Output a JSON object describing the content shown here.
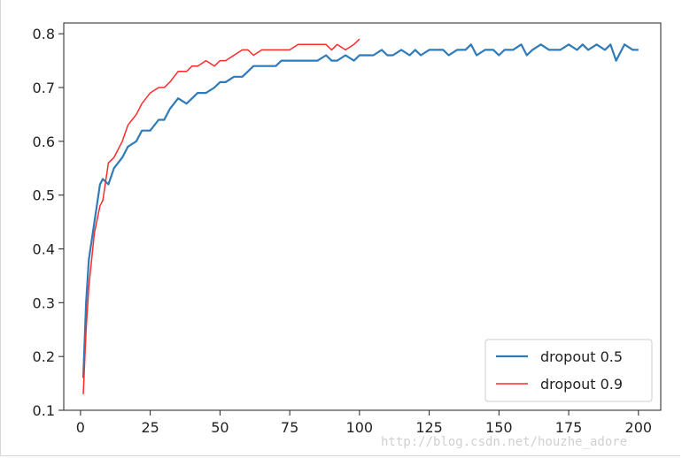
{
  "chart_data": {
    "type": "line",
    "title": "",
    "xlabel": "",
    "ylabel": "",
    "xlim": [
      -6,
      208
    ],
    "ylim": [
      0.1,
      0.82
    ],
    "xticks": [
      0,
      25,
      50,
      75,
      100,
      125,
      150,
      175,
      200
    ],
    "yticks": [
      0.1,
      0.2,
      0.3,
      0.4,
      0.5,
      0.6,
      0.7,
      0.8
    ],
    "xtick_labels": [
      "0",
      "25",
      "50",
      "75",
      "100",
      "125",
      "150",
      "175",
      "200"
    ],
    "ytick_labels": [
      "0.1",
      "0.2",
      "0.3",
      "0.4",
      "0.5",
      "0.6",
      "0.7",
      "0.8"
    ],
    "grid": false,
    "legend_position": "lower-right",
    "series": [
      {
        "name": "dropout 0.5",
        "color": "#2f7ab9",
        "x": [
          1,
          2,
          3,
          5,
          7,
          8,
          10,
          12,
          15,
          17,
          20,
          22,
          25,
          28,
          30,
          32,
          35,
          38,
          40,
          42,
          45,
          48,
          50,
          52,
          55,
          58,
          60,
          62,
          65,
          68,
          70,
          72,
          75,
          78,
          80,
          82,
          85,
          88,
          90,
          92,
          95,
          98,
          100,
          103,
          105,
          108,
          110,
          112,
          115,
          118,
          120,
          122,
          125,
          128,
          130,
          132,
          135,
          138,
          140,
          142,
          145,
          148,
          150,
          152,
          155,
          158,
          160,
          162,
          165,
          168,
          170,
          172,
          175,
          178,
          180,
          182,
          185,
          188,
          190,
          192,
          195,
          198,
          200
        ],
        "y": [
          0.16,
          0.3,
          0.38,
          0.45,
          0.52,
          0.53,
          0.52,
          0.55,
          0.57,
          0.59,
          0.6,
          0.62,
          0.62,
          0.64,
          0.64,
          0.66,
          0.68,
          0.67,
          0.68,
          0.69,
          0.69,
          0.7,
          0.71,
          0.71,
          0.72,
          0.72,
          0.73,
          0.74,
          0.74,
          0.74,
          0.74,
          0.75,
          0.75,
          0.75,
          0.75,
          0.75,
          0.75,
          0.76,
          0.75,
          0.75,
          0.76,
          0.75,
          0.76,
          0.76,
          0.76,
          0.77,
          0.76,
          0.76,
          0.77,
          0.76,
          0.77,
          0.76,
          0.77,
          0.77,
          0.77,
          0.76,
          0.77,
          0.77,
          0.78,
          0.76,
          0.77,
          0.77,
          0.76,
          0.77,
          0.77,
          0.78,
          0.76,
          0.77,
          0.78,
          0.77,
          0.77,
          0.77,
          0.78,
          0.77,
          0.78,
          0.77,
          0.78,
          0.77,
          0.78,
          0.75,
          0.78,
          0.77,
          0.77
        ]
      },
      {
        "name": "dropout 0.9",
        "color": "#ff2a2a",
        "x": [
          1,
          2,
          3,
          5,
          7,
          8,
          10,
          12,
          15,
          17,
          20,
          22,
          25,
          28,
          30,
          32,
          35,
          38,
          40,
          42,
          45,
          48,
          50,
          52,
          55,
          58,
          60,
          62,
          65,
          68,
          70,
          72,
          75,
          78,
          80,
          82,
          85,
          88,
          90,
          92,
          95,
          98,
          100
        ],
        "y": [
          0.13,
          0.25,
          0.33,
          0.43,
          0.48,
          0.49,
          0.56,
          0.57,
          0.6,
          0.63,
          0.65,
          0.67,
          0.69,
          0.7,
          0.7,
          0.71,
          0.73,
          0.73,
          0.74,
          0.74,
          0.75,
          0.74,
          0.75,
          0.75,
          0.76,
          0.77,
          0.77,
          0.76,
          0.77,
          0.77,
          0.77,
          0.77,
          0.77,
          0.78,
          0.78,
          0.78,
          0.78,
          0.78,
          0.77,
          0.78,
          0.77,
          0.78,
          0.79
        ]
      }
    ]
  },
  "watermark": "http://blog.csdn.net/houzhe_adore"
}
